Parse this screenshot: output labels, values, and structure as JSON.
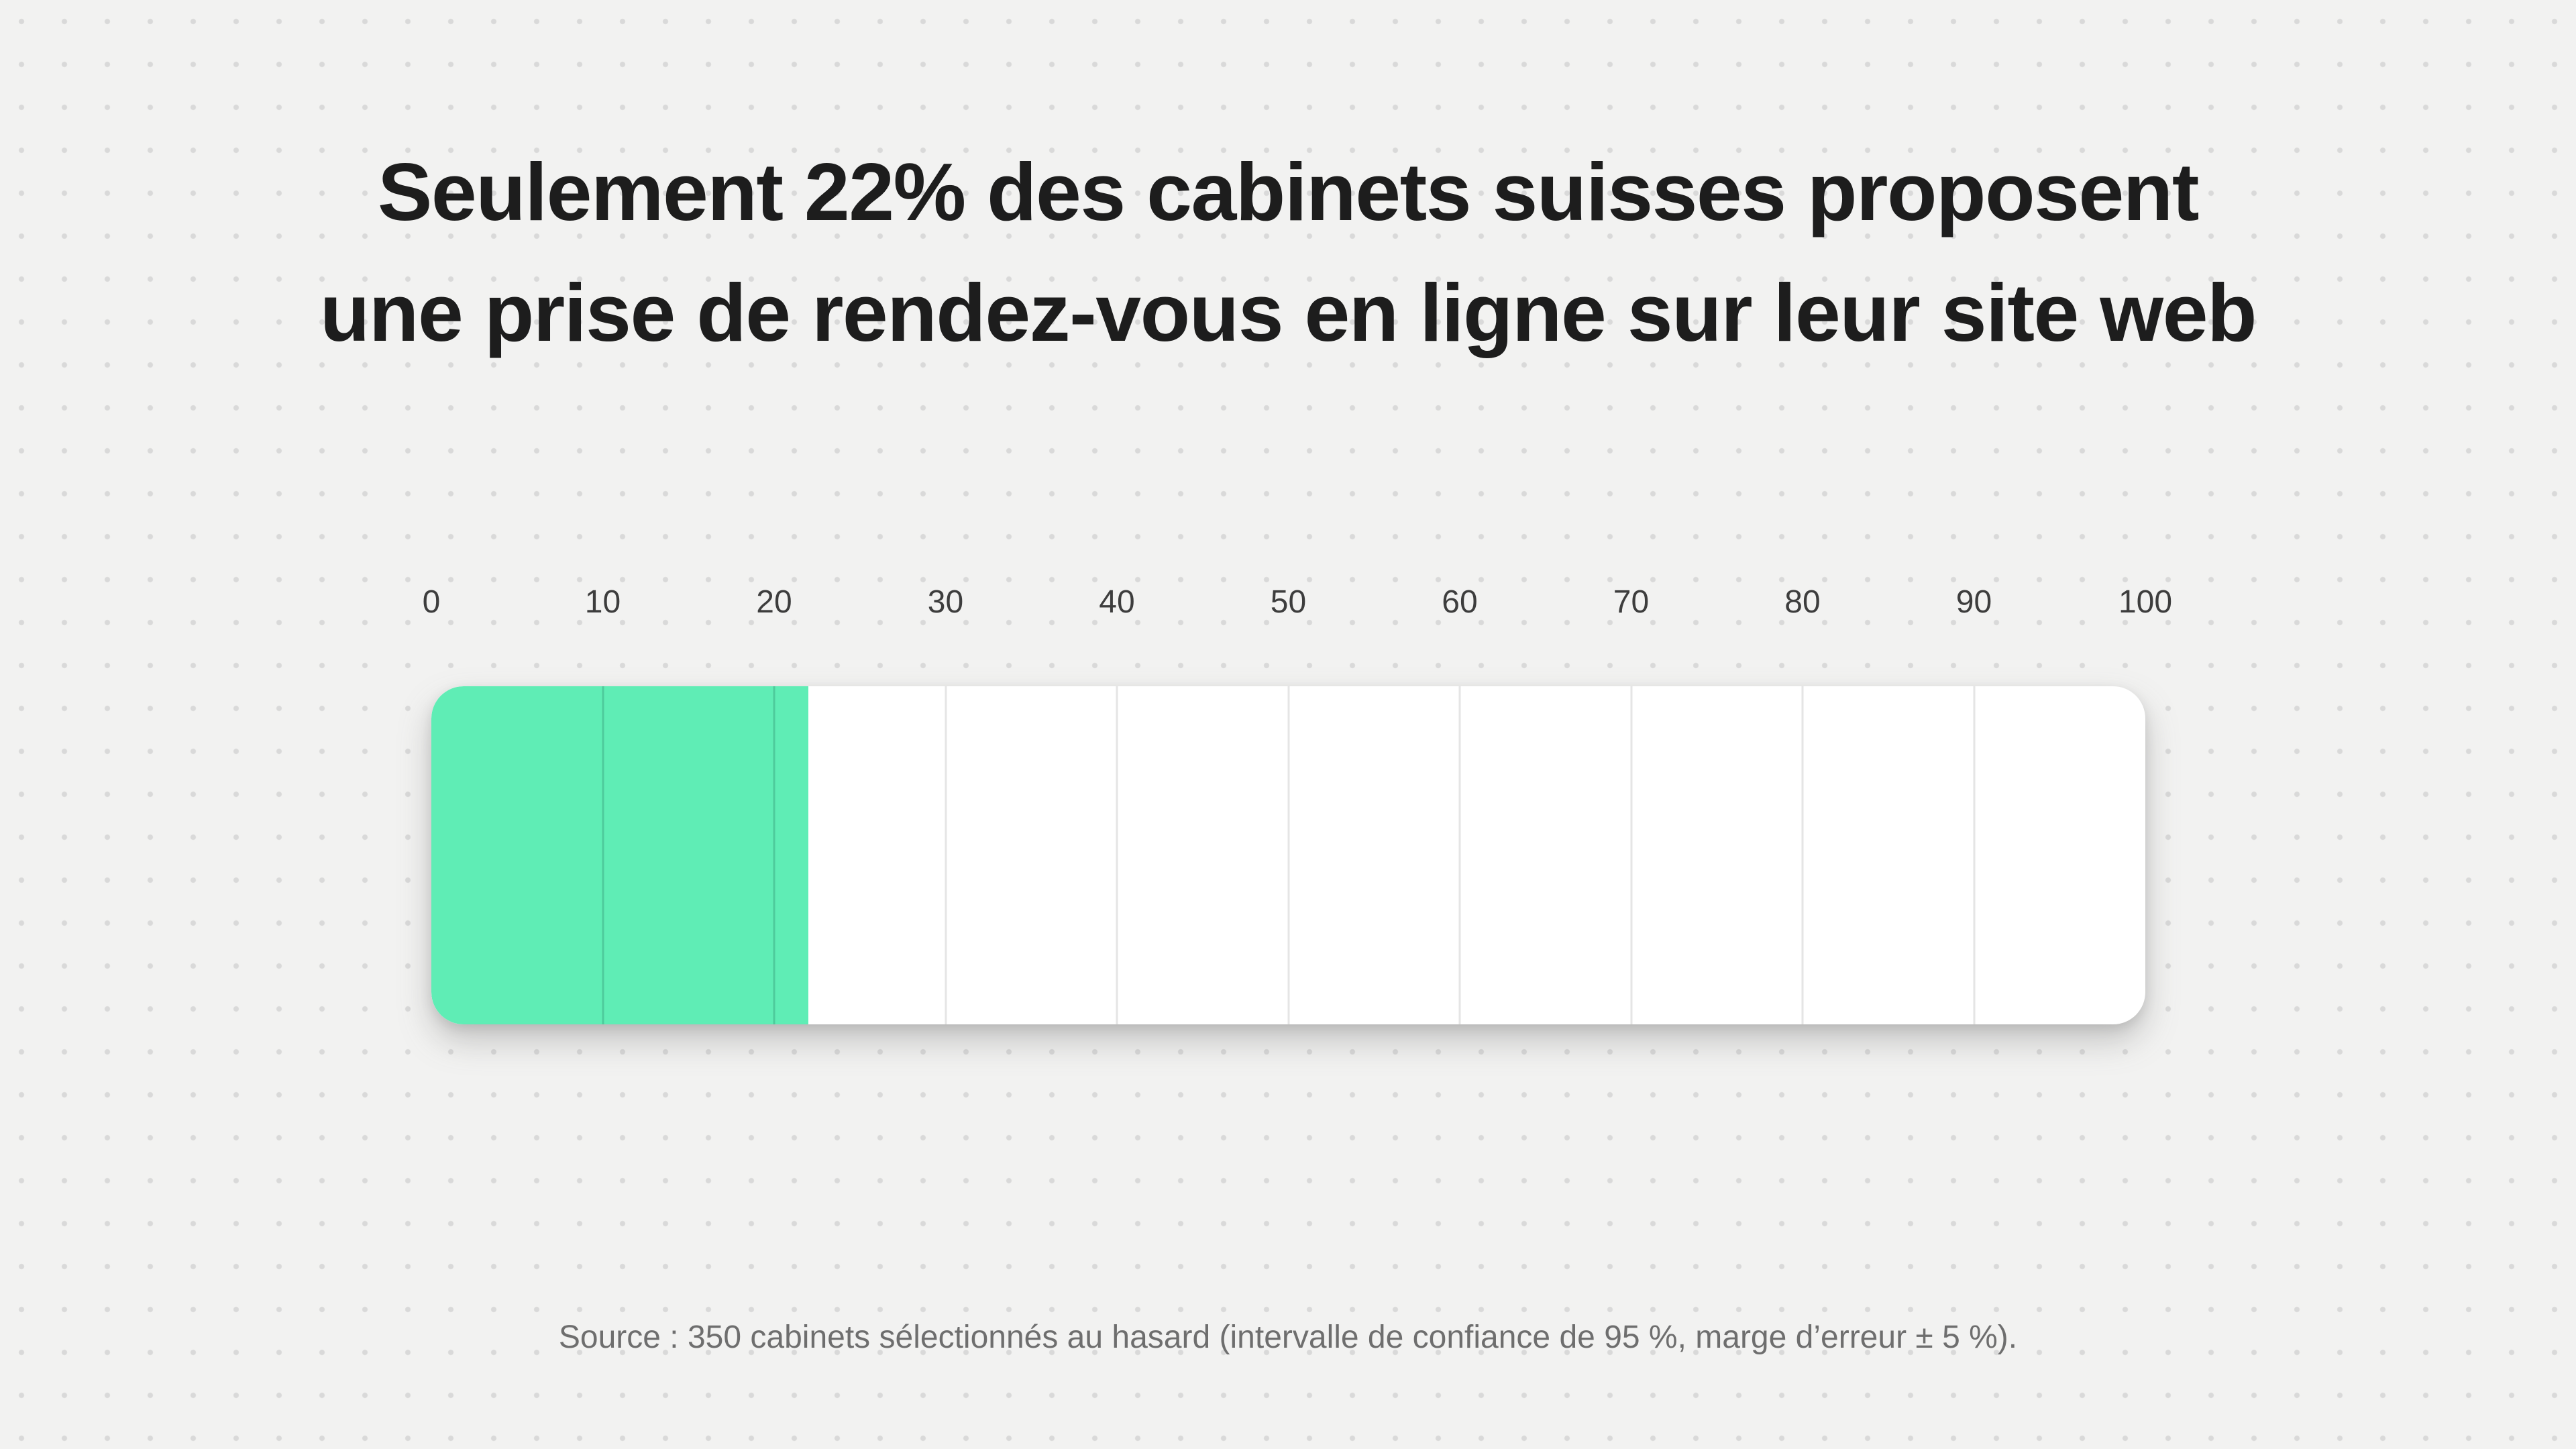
{
  "page": {
    "background_color": "#f2f2f1",
    "dot_color": "#d9d9d9"
  },
  "title": {
    "line1": "Seulement 22% des cabinets suisses proposent",
    "line2": "une prise de rendez-vous en ligne sur leur site web",
    "color": "#1d1d1d"
  },
  "chart_data": {
    "type": "bar",
    "orientation": "horizontal",
    "title": "Seulement 22% des cabinets suisses proposent une prise de rendez-vous en ligne sur leur site web",
    "value": 22,
    "max": 100,
    "xlim": [
      0,
      100
    ],
    "ticks": [
      0,
      10,
      20,
      30,
      40,
      50,
      60,
      70,
      80,
      90,
      100
    ],
    "gridline_step": 10,
    "fill_color": "#5fedb5",
    "track_color": "#ffffff",
    "gridline_color_on_track": "#e5e5e5",
    "gridline_color_on_fill": "#4ecb9c",
    "tick_label_color": "#3d3d3d"
  },
  "source": {
    "text": "Source : 350 cabinets sélectionnés au hasard (intervalle de confiance de 95 %, marge d’erreur ± 5 %)."
  }
}
